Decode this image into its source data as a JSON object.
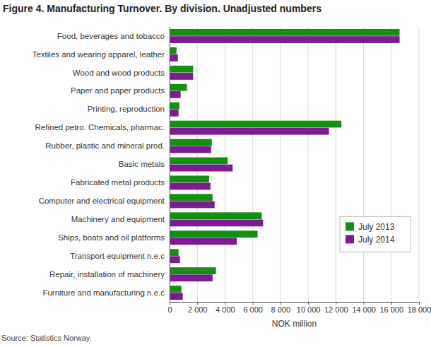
{
  "chart_data": {
    "type": "bar",
    "orientation": "horizontal",
    "title": "Figure 4. Manufacturing Turnover. By division. Unadjusted numbers",
    "xlabel": "NOK million",
    "source": "Source: Statistics Norway.",
    "categories": [
      "Food, beverages and tobacco",
      "Textiles and wearing apparel, leather",
      "Wood and wood products",
      "Paper and paper products",
      "Printing, reproduction",
      "Refined petro. Chemicals, pharmac.",
      "Rubber, plastic and mineral prod.",
      "Basic metals",
      "Fabricated metal products",
      "Computer and electrical equipment",
      "Machinery and equipment",
      "Ships, boats and oil platforms",
      "Transport equipment n.e.c",
      "Repair, installation of machinery",
      "Furniture and manufacturing n.e.c"
    ],
    "series": [
      {
        "name": "July 2013",
        "color": "#138f13",
        "values": [
          16600,
          500,
          1700,
          1250,
          700,
          12400,
          3050,
          4200,
          2850,
          3100,
          6650,
          6350,
          650,
          3350,
          850
        ]
      },
      {
        "name": "July 2014",
        "color": "#7d1a94",
        "values": [
          16600,
          600,
          1700,
          800,
          650,
          11500,
          3000,
          4550,
          2950,
          3250,
          6750,
          4850,
          750,
          3100,
          950
        ]
      }
    ],
    "xlim": [
      0,
      18000
    ],
    "xticks": [
      0,
      {
        "value": 2000,
        "label": "2 000"
      },
      {
        "value": 4000,
        "label": "4 000"
      },
      {
        "value": 6000,
        "label": "6 000"
      },
      {
        "value": 8000,
        "label": "8 000"
      },
      {
        "value": 10000,
        "label": "10 000"
      },
      {
        "value": 12000,
        "label": "12 000"
      },
      {
        "value": 14000,
        "label": "14 000"
      },
      {
        "value": 16000,
        "label": "16 000"
      },
      {
        "value": 18000,
        "label": "18 000"
      }
    ],
    "grid": true,
    "legend": "lower right"
  }
}
